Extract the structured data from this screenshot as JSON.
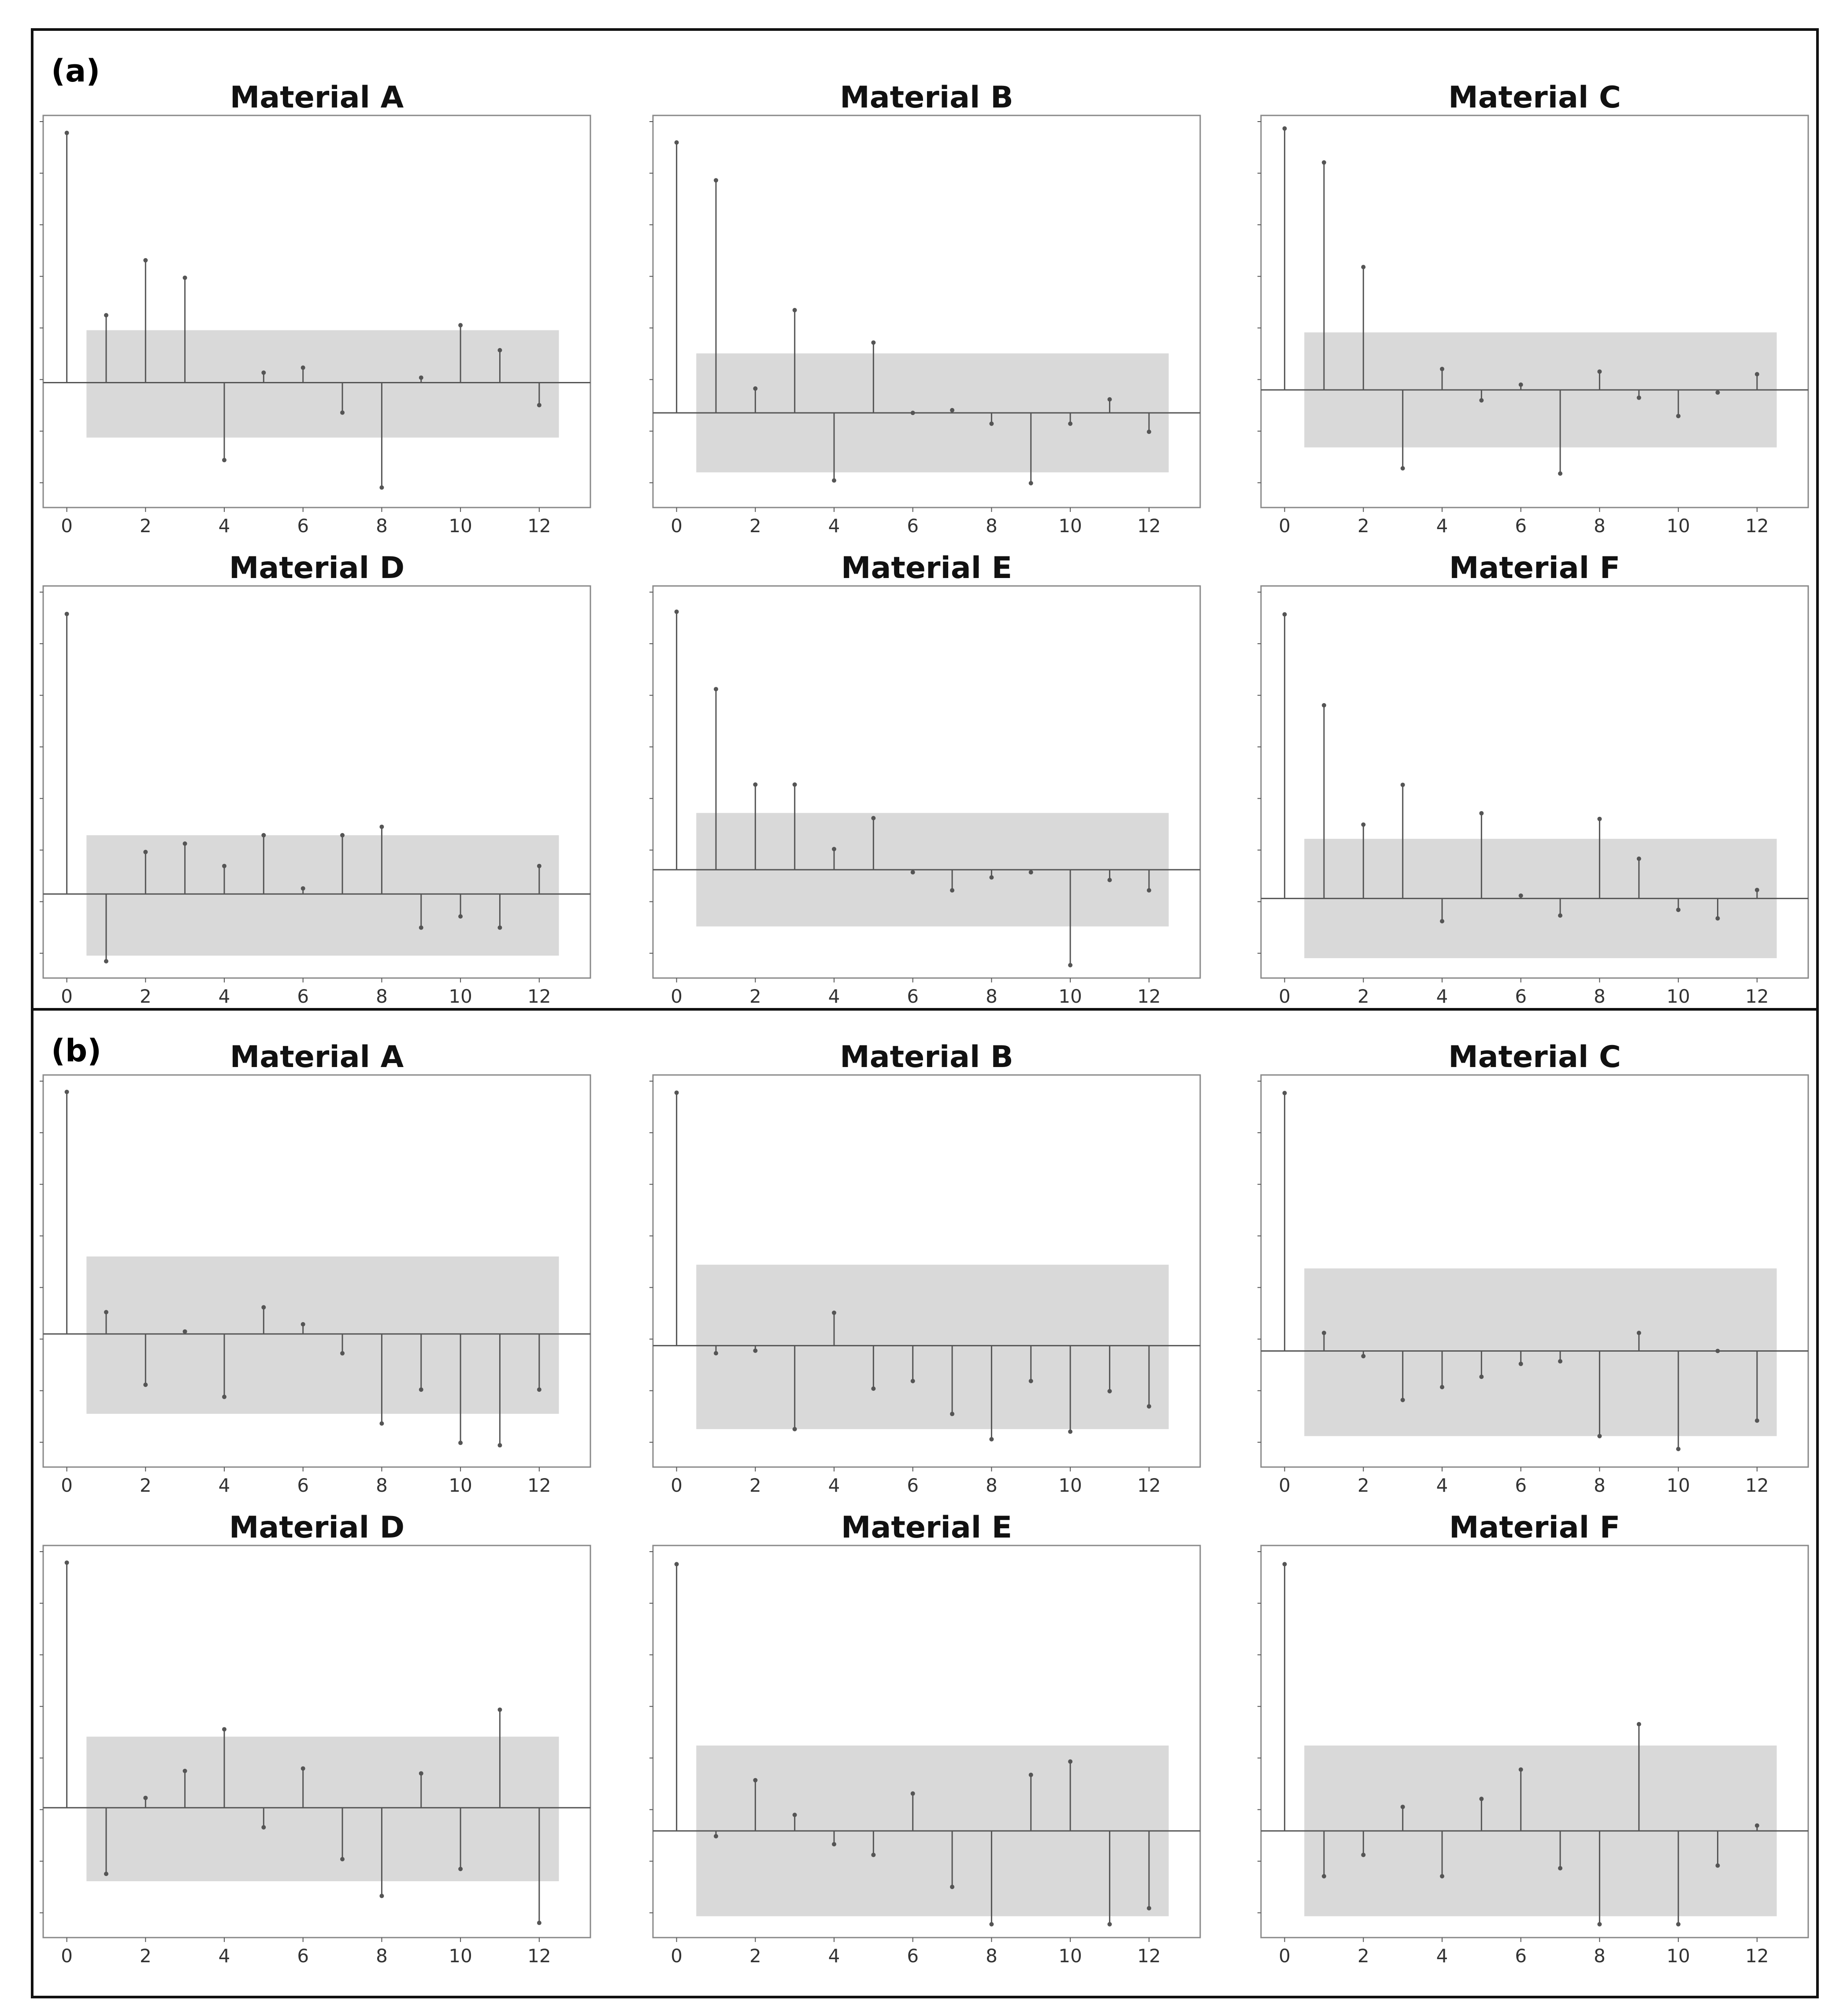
{
  "panels": [
    {
      "label": "(a)"
    },
    {
      "label": "(b)"
    }
  ],
  "colors": {
    "band": "#d9d9d9",
    "stem": "#555555",
    "axis": "#555555",
    "frame": "#888888"
  },
  "chart_data": [
    {
      "type": "stem",
      "panel": "(a)",
      "title": "Material A",
      "x": [
        0,
        1,
        2,
        3,
        4,
        5,
        6,
        7,
        8,
        9,
        10,
        11,
        12
      ],
      "values": [
        1.0,
        0.27,
        0.49,
        0.42,
        -0.31,
        0.04,
        0.06,
        -0.12,
        -0.42,
        0.02,
        0.23,
        0.13,
        -0.09
      ],
      "confidence_band": [
        -0.22,
        0.21
      ],
      "xticks": [
        0,
        2,
        4,
        6,
        8,
        10,
        12
      ],
      "xlim": [
        -0.6,
        13.3
      ],
      "ylim": [
        -0.5,
        1.07
      ]
    },
    {
      "type": "stem",
      "panel": "(a)",
      "title": "Material B",
      "x": [
        0,
        1,
        2,
        3,
        4,
        5,
        6,
        7,
        8,
        9,
        10,
        11,
        12
      ],
      "values": [
        1.0,
        0.86,
        0.09,
        0.38,
        -0.25,
        0.26,
        0.0,
        0.01,
        -0.04,
        -0.26,
        -0.04,
        0.05,
        -0.07
      ],
      "confidence_band": [
        -0.22,
        0.22
      ],
      "xticks": [
        0,
        2,
        4,
        6,
        8,
        10,
        12
      ],
      "xlim": [
        -0.6,
        13.3
      ],
      "ylim": [
        -0.35,
        1.1
      ]
    },
    {
      "type": "stem",
      "panel": "(a)",
      "title": "Material C",
      "x": [
        0,
        1,
        2,
        3,
        4,
        5,
        6,
        7,
        8,
        9,
        10,
        11,
        12
      ],
      "values": [
        1.0,
        0.87,
        0.47,
        -0.3,
        0.08,
        -0.04,
        0.02,
        -0.32,
        0.07,
        -0.03,
        -0.1,
        -0.01,
        0.06
      ],
      "confidence_band": [
        -0.22,
        0.22
      ],
      "xticks": [
        0,
        2,
        4,
        6,
        8,
        10,
        12
      ],
      "xlim": [
        -0.6,
        13.3
      ],
      "ylim": [
        -0.45,
        1.05
      ]
    },
    {
      "type": "stem",
      "panel": "(a)",
      "title": "Material D",
      "x": [
        0,
        1,
        2,
        3,
        4,
        5,
        6,
        7,
        8,
        9,
        10,
        11,
        12
      ],
      "values": [
        1.0,
        -0.24,
        0.15,
        0.18,
        0.1,
        0.21,
        0.02,
        0.21,
        0.24,
        -0.12,
        -0.08,
        -0.12,
        0.1
      ],
      "confidence_band": [
        -0.22,
        0.21
      ],
      "xticks": [
        0,
        2,
        4,
        6,
        8,
        10,
        12
      ],
      "xlim": [
        -0.6,
        13.3
      ],
      "ylim": [
        -0.3,
        1.1
      ]
    },
    {
      "type": "stem",
      "panel": "(a)",
      "title": "Material E",
      "x": [
        0,
        1,
        2,
        3,
        4,
        5,
        6,
        7,
        8,
        9,
        10,
        11,
        12
      ],
      "values": [
        1.0,
        0.7,
        0.33,
        0.33,
        0.08,
        0.2,
        -0.01,
        -0.08,
        -0.03,
        -0.01,
        -0.37,
        -0.04,
        -0.08
      ],
      "confidence_band": [
        -0.22,
        0.22
      ],
      "xticks": [
        0,
        2,
        4,
        6,
        8,
        10,
        12
      ],
      "xlim": [
        -0.6,
        13.3
      ],
      "ylim": [
        -0.42,
        1.1
      ]
    },
    {
      "type": "stem",
      "panel": "(a)",
      "title": "Material F",
      "x": [
        0,
        1,
        2,
        3,
        4,
        5,
        6,
        7,
        8,
        9,
        10,
        11,
        12
      ],
      "values": [
        1.0,
        0.68,
        0.26,
        0.4,
        -0.08,
        0.3,
        0.01,
        -0.06,
        0.28,
        0.14,
        -0.04,
        -0.07,
        0.03
      ],
      "confidence_band": [
        -0.21,
        0.21
      ],
      "xticks": [
        0,
        2,
        4,
        6,
        8,
        10,
        12
      ],
      "xlim": [
        -0.6,
        13.3
      ],
      "ylim": [
        -0.28,
        1.1
      ]
    },
    {
      "type": "stem",
      "panel": "(b)",
      "title": "Material A",
      "x": [
        0,
        1,
        2,
        3,
        4,
        5,
        6,
        7,
        8,
        9,
        10,
        11,
        12
      ],
      "values": [
        1.0,
        0.09,
        -0.21,
        0.01,
        -0.26,
        0.11,
        0.04,
        -0.08,
        -0.37,
        -0.23,
        -0.45,
        -0.46,
        -0.23
      ],
      "confidence_band": [
        -0.33,
        0.32
      ],
      "xticks": [
        0,
        2,
        4,
        6,
        8,
        10,
        12
      ],
      "xlim": [
        -0.6,
        13.3
      ],
      "ylim": [
        -0.55,
        1.07
      ]
    },
    {
      "type": "stem",
      "panel": "(b)",
      "title": "Material B",
      "x": [
        0,
        1,
        2,
        3,
        4,
        5,
        6,
        7,
        8,
        9,
        10,
        11,
        12
      ],
      "values": [
        1.0,
        -0.03,
        -0.02,
        -0.33,
        0.13,
        -0.17,
        -0.14,
        -0.27,
        -0.37,
        -0.14,
        -0.34,
        -0.18,
        -0.24
      ],
      "confidence_band": [
        -0.33,
        0.32
      ],
      "xticks": [
        0,
        2,
        4,
        6,
        8,
        10,
        12
      ],
      "xlim": [
        -0.6,
        13.3
      ],
      "ylim": [
        -0.48,
        1.07
      ]
    },
    {
      "type": "stem",
      "panel": "(b)",
      "title": "Material C",
      "x": [
        0,
        1,
        2,
        3,
        4,
        5,
        6,
        7,
        8,
        9,
        10,
        11,
        12
      ],
      "values": [
        1.0,
        0.07,
        -0.02,
        -0.19,
        -0.14,
        -0.1,
        -0.05,
        -0.04,
        -0.33,
        0.07,
        -0.38,
        0.0,
        -0.27
      ],
      "confidence_band": [
        -0.33,
        0.32
      ],
      "xticks": [
        0,
        2,
        4,
        6,
        8,
        10,
        12
      ],
      "xlim": [
        -0.6,
        13.3
      ],
      "ylim": [
        -0.45,
        1.07
      ]
    },
    {
      "type": "stem",
      "panel": "(b)",
      "title": "Material D",
      "x": [
        0,
        1,
        2,
        3,
        4,
        5,
        6,
        7,
        8,
        9,
        10,
        11,
        12
      ],
      "values": [
        1.0,
        -0.27,
        0.04,
        0.15,
        0.32,
        -0.08,
        0.16,
        -0.21,
        -0.36,
        0.14,
        -0.25,
        0.4,
        -0.47
      ],
      "confidence_band": [
        -0.3,
        0.29
      ],
      "xticks": [
        0,
        2,
        4,
        6,
        8,
        10,
        12
      ],
      "xlim": [
        -0.6,
        13.3
      ],
      "ylim": [
        -0.53,
        1.07
      ]
    },
    {
      "type": "stem",
      "panel": "(b)",
      "title": "Material E",
      "x": [
        0,
        1,
        2,
        3,
        4,
        5,
        6,
        7,
        8,
        9,
        10,
        11,
        12
      ],
      "values": [
        1.0,
        -0.02,
        0.19,
        0.06,
        -0.05,
        -0.09,
        0.14,
        -0.21,
        -0.35,
        0.21,
        0.26,
        -0.35,
        -0.29
      ],
      "confidence_band": [
        -0.32,
        0.32
      ],
      "xticks": [
        0,
        2,
        4,
        6,
        8,
        10,
        12
      ],
      "xlim": [
        -0.6,
        13.3
      ],
      "ylim": [
        -0.4,
        1.07
      ]
    },
    {
      "type": "stem",
      "panel": "(b)",
      "title": "Material F",
      "x": [
        0,
        1,
        2,
        3,
        4,
        5,
        6,
        7,
        8,
        9,
        10,
        11,
        12
      ],
      "values": [
        1.0,
        -0.17,
        -0.09,
        0.09,
        -0.17,
        0.12,
        0.23,
        -0.14,
        -0.35,
        0.4,
        -0.35,
        -0.13,
        0.02
      ],
      "confidence_band": [
        -0.32,
        0.32
      ],
      "xticks": [
        0,
        2,
        4,
        6,
        8,
        10,
        12
      ],
      "xlim": [
        -0.6,
        13.3
      ],
      "ylim": [
        -0.4,
        1.07
      ]
    }
  ]
}
